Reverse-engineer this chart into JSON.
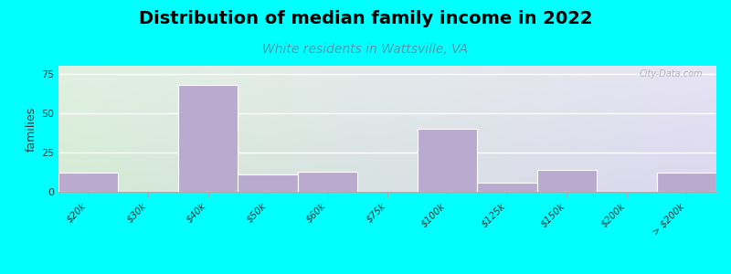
{
  "title": "Distribution of median family income in 2022",
  "subtitle": "White residents in Wattsville, VA",
  "ylabel": "families",
  "categories": [
    "$20k",
    "$30k",
    "$40k",
    "$50k",
    "$60k",
    "$75k",
    "$100k",
    "$125k",
    "$150k",
    "$200k",
    "> $200k"
  ],
  "values": [
    12,
    0,
    68,
    11,
    13,
    0,
    40,
    6,
    14,
    0,
    12
  ],
  "bar_color": "#bbaad0",
  "background_color": "#00ffff",
  "plot_bg_top_left": "#d4ecd4",
  "plot_bg_top_right": "#e8e8f8",
  "plot_bg_bottom": "#c8ecd8",
  "title_fontsize": 14,
  "subtitle_fontsize": 10,
  "subtitle_color": "#5599aa",
  "ylabel_fontsize": 9,
  "tick_fontsize": 7.5,
  "ylim": [
    0,
    80
  ],
  "yticks": [
    0,
    25,
    50,
    75
  ],
  "watermark": "City-Data.com"
}
